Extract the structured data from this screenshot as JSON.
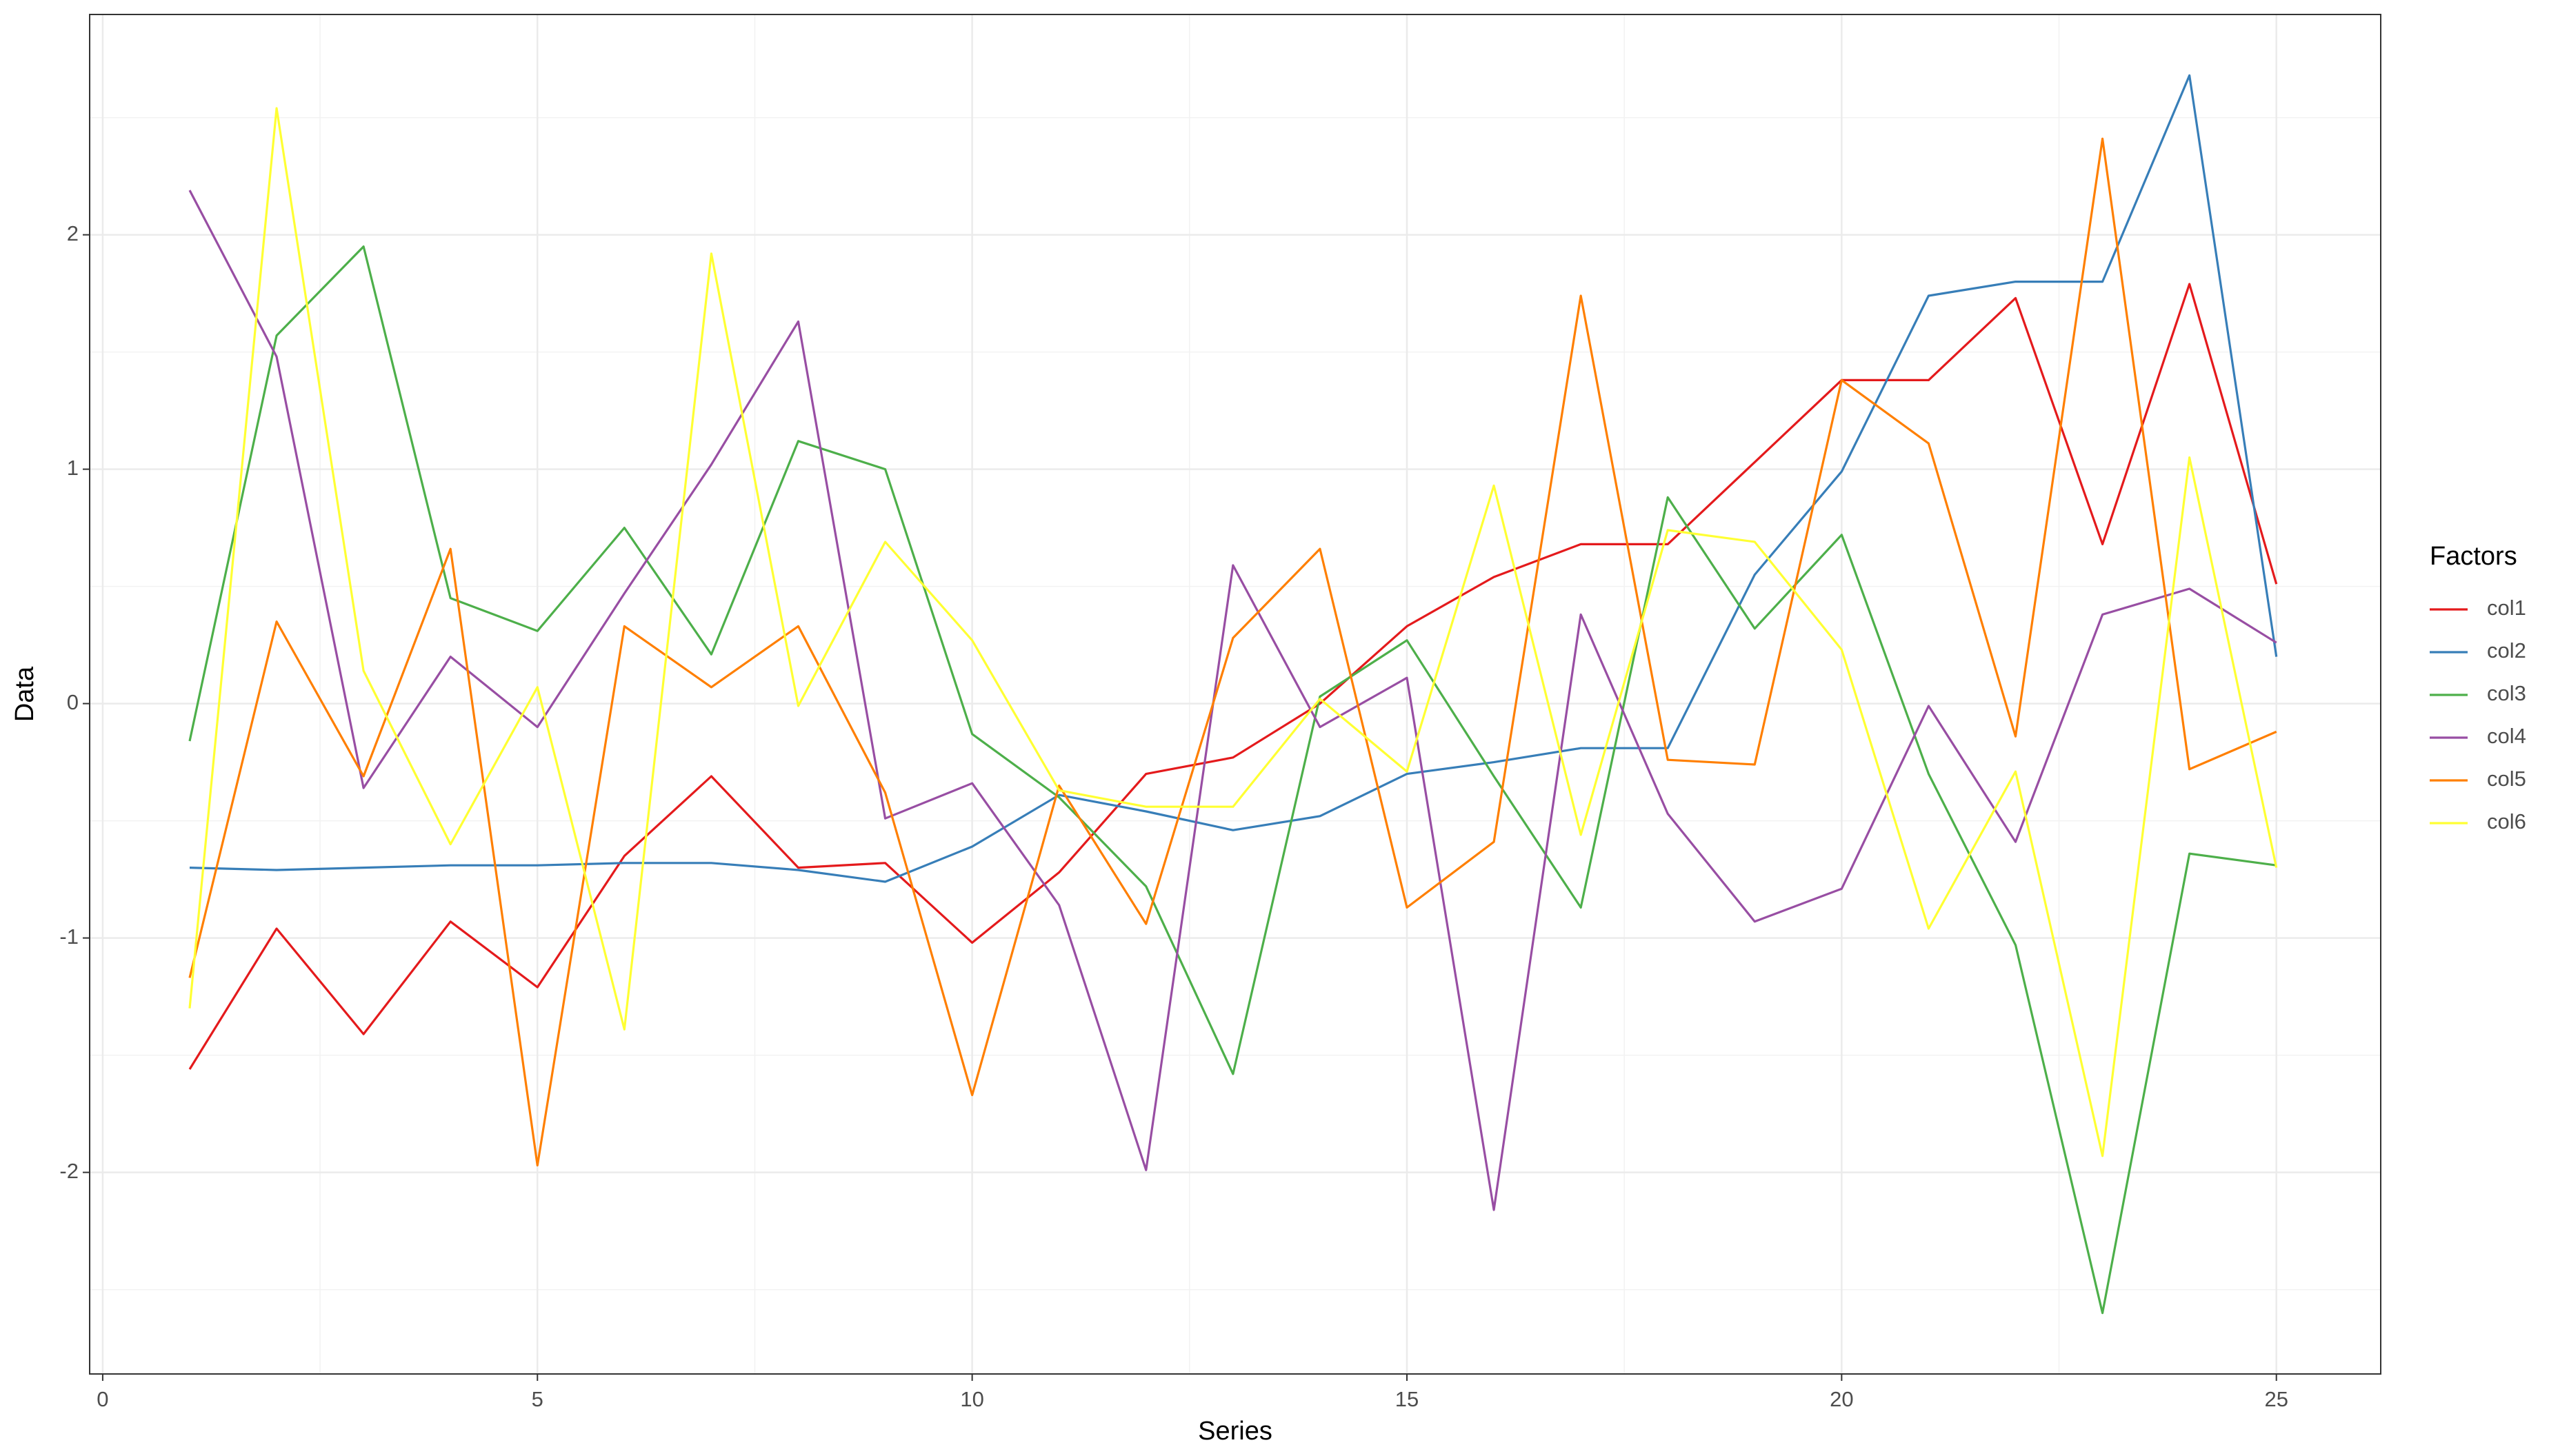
{
  "chart_data": {
    "type": "line",
    "x_label": "Series",
    "y_label": "Data",
    "legend_title": "Factors",
    "legend_position": "right",
    "x": [
      1,
      2,
      3,
      4,
      5,
      6,
      7,
      8,
      9,
      10,
      11,
      12,
      13,
      14,
      15,
      16,
      17,
      18,
      19,
      20,
      21,
      22,
      23,
      24,
      25
    ],
    "series": [
      {
        "name": "col1",
        "color": "#e41a1c",
        "values": [
          -1.56,
          -0.96,
          -1.41,
          -0.93,
          -1.21,
          -0.65,
          -0.31,
          -0.7,
          -0.68,
          -1.02,
          -0.72,
          -0.3,
          -0.23,
          0.0,
          0.33,
          0.54,
          0.68,
          0.68,
          1.03,
          1.38,
          1.38,
          1.73,
          0.68,
          1.79,
          0.51
        ]
      },
      {
        "name": "col2",
        "color": "#377eb8",
        "values": [
          -0.7,
          -0.71,
          -0.7,
          -0.69,
          -0.69,
          -0.68,
          -0.68,
          -0.71,
          -0.76,
          -0.61,
          -0.39,
          -0.46,
          -0.54,
          -0.48,
          -0.3,
          -0.25,
          -0.19,
          -0.19,
          0.55,
          0.99,
          1.74,
          1.8,
          1.8,
          2.68,
          0.2
        ]
      },
      {
        "name": "col3",
        "color": "#4daf4a",
        "values": [
          -0.16,
          1.57,
          1.95,
          0.45,
          0.31,
          0.75,
          0.21,
          1.12,
          1.0,
          -0.13,
          -0.4,
          -0.78,
          -1.58,
          0.03,
          0.27,
          -0.31,
          -0.87,
          0.88,
          0.32,
          0.72,
          -0.3,
          -1.03,
          -2.6,
          -0.64,
          -0.69
        ]
      },
      {
        "name": "col4",
        "color": "#984ea3",
        "values": [
          2.19,
          1.48,
          -0.36,
          0.2,
          -0.1,
          0.47,
          1.02,
          1.63,
          -0.49,
          -0.34,
          -0.86,
          -1.99,
          0.59,
          -0.1,
          0.11,
          -2.16,
          0.38,
          -0.47,
          -0.93,
          -0.79,
          -0.01,
          -0.59,
          0.38,
          0.49,
          0.26
        ]
      },
      {
        "name": "col5",
        "color": "#ff7f00",
        "values": [
          -1.17,
          0.35,
          -0.31,
          0.66,
          -1.97,
          0.33,
          0.07,
          0.33,
          -0.38,
          -1.67,
          -0.35,
          -0.94,
          0.28,
          0.66,
          -0.87,
          -0.59,
          1.74,
          -0.24,
          -0.26,
          1.38,
          1.11,
          -0.14,
          2.41,
          -0.28,
          -0.12
        ]
      },
      {
        "name": "col6",
        "color": "#ffff33",
        "values": [
          -1.3,
          2.54,
          0.14,
          -0.6,
          0.07,
          -1.39,
          1.92,
          -0.01,
          0.69,
          0.27,
          -0.37,
          -0.44,
          -0.44,
          0.02,
          -0.29,
          0.93,
          -0.56,
          0.74,
          0.69,
          0.23,
          -0.96,
          -0.29,
          -1.93,
          1.05,
          -0.7
        ]
      }
    ],
    "xlim": [
      -0.15,
      26.2
    ],
    "xticks": [
      0,
      5,
      10,
      15,
      20,
      25
    ],
    "xminor": [
      2.5,
      7.5,
      12.5,
      17.5,
      22.5
    ],
    "ylim": [
      -2.86,
      2.94
    ],
    "yticks": [
      -2,
      -1,
      0,
      1,
      2
    ],
    "yminor": [
      -2.5,
      -1.5,
      -0.5,
      0.5,
      1.5,
      2.5
    ],
    "grid": true
  }
}
